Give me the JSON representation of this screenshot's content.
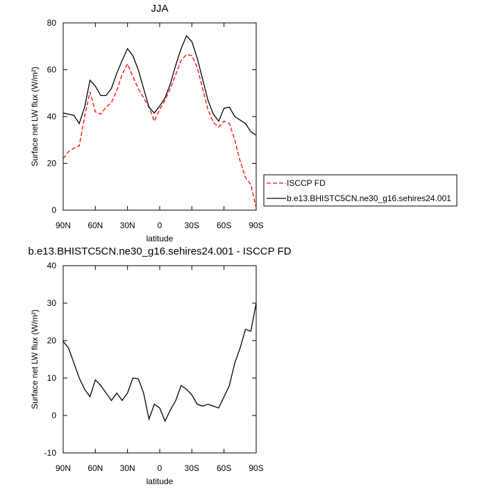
{
  "chart_data": [
    {
      "type": "line",
      "title": "JJA",
      "xlabel": "latitude",
      "ylabel": "Surface net LW flux (W/m²)",
      "x": [
        90,
        85,
        80,
        75,
        70,
        65,
        60,
        55,
        50,
        45,
        40,
        35,
        30,
        25,
        20,
        15,
        10,
        5,
        0,
        -5,
        -10,
        -15,
        -20,
        -25,
        -30,
        -35,
        -40,
        -45,
        -50,
        -55,
        -60,
        -65,
        -70,
        -75,
        -80,
        -85,
        -90
      ],
      "xlim": [
        90,
        -90
      ],
      "xticks": [
        {
          "value": 90,
          "label": "90N"
        },
        {
          "value": 60,
          "label": "60N"
        },
        {
          "value": 30,
          "label": "30N"
        },
        0,
        {
          "value": -30,
          "label": "30S"
        },
        {
          "value": -60,
          "label": "60S"
        },
        {
          "value": -90,
          "label": "90S"
        }
      ],
      "ylim": [
        0,
        80
      ],
      "yticks": [
        0,
        20,
        40,
        60,
        80
      ],
      "series": [
        {
          "name": "ISCCP FD",
          "color": "#ff0000",
          "linestyle": "dashed",
          "values": [
            22,
            25,
            26.5,
            27.5,
            40,
            50.5,
            42,
            41,
            44,
            46,
            51,
            58,
            62.5,
            57,
            52,
            48,
            44,
            38,
            43,
            47,
            52,
            58,
            64,
            66.5,
            66,
            61,
            52,
            43,
            37.5,
            35.5,
            38,
            37,
            30,
            21,
            14,
            11,
            1
          ]
        },
        {
          "name": "b.e13.BHISTC5CN.ne30_g16.sehires24.001",
          "color": "#000000",
          "linestyle": "solid",
          "values": [
            41.5,
            41,
            40.5,
            37,
            44,
            55.5,
            53,
            49,
            49,
            52,
            58.5,
            64,
            69,
            66,
            60,
            52,
            44,
            41.5,
            44.5,
            48,
            54,
            62,
            69,
            74.5,
            72,
            65,
            56,
            47,
            41,
            38,
            43.5,
            44,
            40,
            38.5,
            37,
            33.5,
            32
          ]
        }
      ]
    },
    {
      "type": "line",
      "title": "b.e13.BHISTC5CN.ne30_g16.sehires24.001 - ISCCP FD",
      "xlabel": "latitude",
      "ylabel": "Surface net LW flux (W/m²)",
      "x": [
        90,
        85,
        80,
        75,
        70,
        65,
        60,
        55,
        50,
        45,
        40,
        35,
        30,
        25,
        20,
        15,
        10,
        5,
        0,
        -5,
        -10,
        -15,
        -20,
        -25,
        -30,
        -35,
        -40,
        -45,
        -50,
        -55,
        -60,
        -65,
        -70,
        -75,
        -80,
        -85,
        -90
      ],
      "xlim": [
        90,
        -90
      ],
      "xticks": [
        {
          "value": 90,
          "label": "90N"
        },
        {
          "value": 60,
          "label": "60N"
        },
        {
          "value": 30,
          "label": "30N"
        },
        0,
        {
          "value": -30,
          "label": "30S"
        },
        {
          "value": -60,
          "label": "60S"
        },
        {
          "value": -90,
          "label": "90S"
        }
      ],
      "ylim": [
        -10,
        40
      ],
      "yticks": [
        -10,
        0,
        10,
        20,
        30,
        40
      ],
      "series": [
        {
          "color": "#000000",
          "linestyle": "solid",
          "values": [
            19.8,
            18,
            14,
            10,
            7,
            5,
            9.5,
            8,
            6,
            4,
            6,
            4,
            6,
            10,
            9.8,
            6,
            -1,
            3,
            2,
            -1.5,
            1.5,
            4,
            8,
            7,
            5.5,
            3,
            2.5,
            3,
            2.5,
            2,
            5,
            8,
            14,
            18,
            23,
            22.5,
            30
          ]
        }
      ]
    }
  ]
}
